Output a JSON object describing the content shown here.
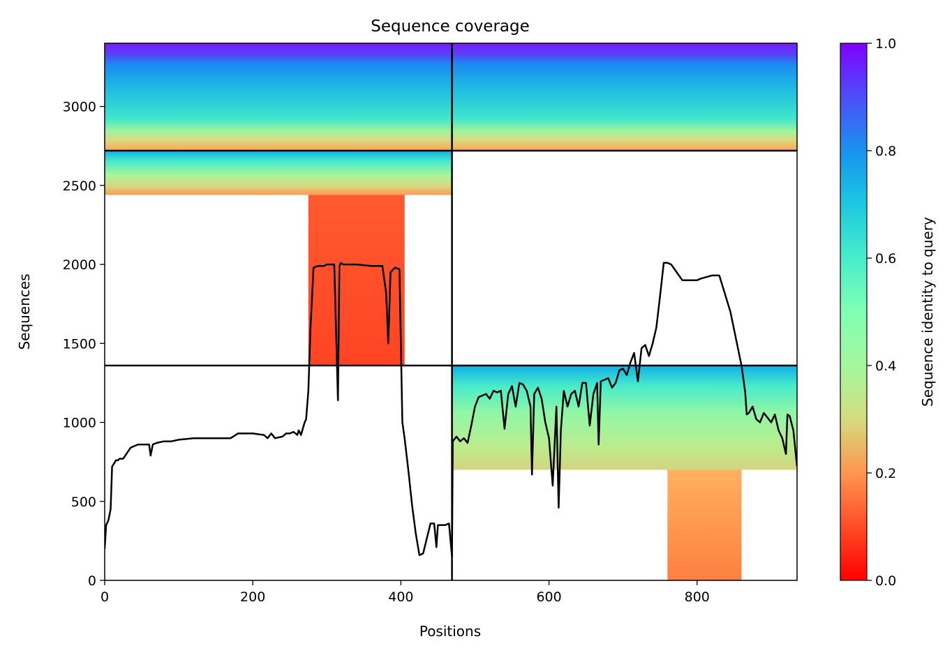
{
  "chart_data": {
    "type": "heatmap",
    "title": "Sequence coverage",
    "xlabel": "Positions",
    "ylabel": "Sequences",
    "xlim": [
      0,
      935
    ],
    "ylim": [
      0,
      3400
    ],
    "x_ticks": [
      0,
      200,
      400,
      600,
      800
    ],
    "y_ticks": [
      0,
      500,
      1000,
      1500,
      2000,
      2500,
      3000
    ],
    "grid": false,
    "colormap": "rainbow",
    "colorbar": {
      "label": "Sequence identity to query",
      "range": [
        0,
        1
      ],
      "ticks": [
        0.0,
        0.2,
        0.4,
        0.6,
        0.8,
        1.0
      ],
      "tick_labels": [
        "0.0",
        "0.2",
        "0.4",
        "0.6",
        "0.8",
        "1.0"
      ]
    },
    "chain_boundaries": {
      "x": [
        469
      ],
      "y": [
        2720,
        1360
      ]
    },
    "coverage_regions": [
      {
        "chain": "A",
        "x": [
          0,
          469
        ],
        "y": [
          3400,
          2720
        ]
      },
      {
        "chain": "A",
        "x": [
          0,
          469
        ],
        "y": [
          2720,
          2440
        ]
      },
      {
        "chain": "A",
        "x": [
          275,
          405
        ],
        "y": [
          2440,
          1360
        ]
      },
      {
        "chain": "B",
        "x": [
          469,
          935
        ],
        "y": [
          3400,
          2720
        ]
      },
      {
        "chain": "B",
        "x": [
          469,
          935
        ],
        "y": [
          1360,
          700
        ]
      },
      {
        "chain": "B",
        "x": [
          760,
          860
        ],
        "y": [
          700,
          0
        ]
      }
    ],
    "series": [
      {
        "type": "line",
        "color": "#000000",
        "x": [
          0,
          2,
          5,
          8,
          10,
          14,
          15,
          18,
          20,
          25,
          35,
          40,
          45,
          60,
          62,
          65,
          70,
          80,
          90,
          100,
          120,
          140,
          170,
          180,
          190,
          200,
          215,
          220,
          225,
          230,
          240,
          245,
          250,
          255,
          260,
          262,
          265,
          270,
          272,
          275,
          278,
          282,
          288,
          296,
          300,
          310,
          315,
          317,
          319,
          322,
          330,
          340,
          360,
          375,
          380,
          383,
          386,
          392,
          398,
          402,
          405,
          410,
          415,
          420,
          425,
          430,
          440,
          445,
          448,
          450,
          460,
          465,
          469,
          470,
          475,
          480,
          485,
          490,
          495,
          500,
          505,
          510,
          515,
          520,
          525,
          530,
          535,
          540,
          545,
          550,
          555,
          560,
          565,
          570,
          575,
          577,
          580,
          585,
          590,
          595,
          600,
          605,
          607,
          610,
          613,
          616,
          620,
          625,
          630,
          635,
          640,
          645,
          650,
          655,
          660,
          665,
          667,
          670,
          675,
          680,
          685,
          690,
          695,
          700,
          705,
          710,
          715,
          720,
          725,
          730,
          735,
          740,
          745,
          750,
          755,
          760,
          765,
          780,
          800,
          805,
          820,
          830,
          845,
          860,
          865,
          867,
          870,
          875,
          880,
          885,
          890,
          900,
          905,
          910,
          915,
          920,
          922,
          925,
          930,
          935
        ],
        "y": [
          200,
          350,
          380,
          450,
          720,
          750,
          760,
          760,
          770,
          770,
          840,
          850,
          860,
          860,
          790,
          860,
          870,
          880,
          880,
          890,
          900,
          900,
          900,
          930,
          930,
          930,
          920,
          900,
          930,
          900,
          910,
          930,
          930,
          940,
          920,
          950,
          920,
          1000,
          1020,
          1200,
          1600,
          1980,
          1990,
          1990,
          2000,
          2000,
          1140,
          1990,
          2010,
          2000,
          2000,
          2000,
          1990,
          1990,
          1820,
          1500,
          1950,
          1980,
          1970,
          1000,
          900,
          700,
          480,
          300,
          160,
          170,
          360,
          360,
          210,
          350,
          350,
          360,
          150,
          880,
          910,
          880,
          900,
          870,
          980,
          1100,
          1160,
          1170,
          1180,
          1150,
          1200,
          1190,
          1200,
          960,
          1180,
          1230,
          1100,
          1250,
          1240,
          1200,
          1100,
          670,
          1180,
          1220,
          1150,
          1000,
          900,
          600,
          800,
          1100,
          460,
          950,
          1200,
          1100,
          1180,
          1200,
          1100,
          1250,
          1250,
          980,
          1180,
          1250,
          860,
          1260,
          1270,
          1280,
          1220,
          1250,
          1330,
          1340,
          1300,
          1380,
          1440,
          1260,
          1470,
          1490,
          1420,
          1500,
          1600,
          1800,
          2010,
          2010,
          2000,
          1900,
          1900,
          1910,
          1930,
          1930,
          1700,
          1360,
          1190,
          1050,
          1060,
          1100,
          1020,
          1000,
          1060,
          1000,
          1050,
          950,
          900,
          800,
          1050,
          1040,
          950,
          720
        ]
      }
    ]
  }
}
